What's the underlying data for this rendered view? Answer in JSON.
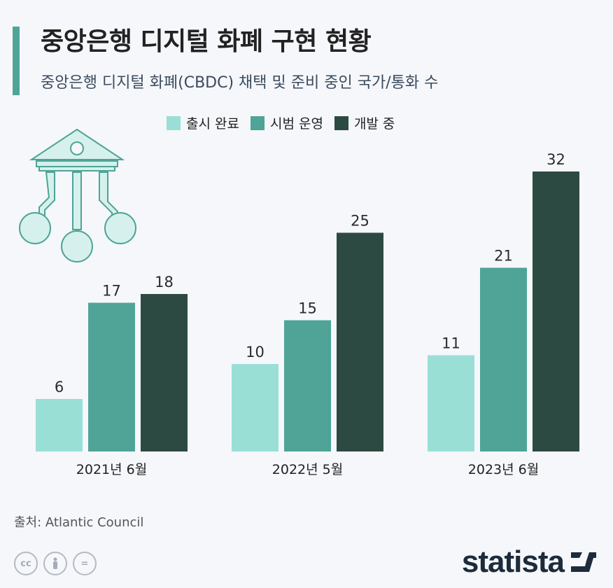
{
  "title": "중앙은행 디지털 화폐 구현 현황",
  "subtitle": "중앙은행 디지털 화폐(CBDC) 채택 및 준비 중인 국가/통화 수",
  "source": "출처: Atlantic Council",
  "logo_text": "statista",
  "chart_data": {
    "type": "bar",
    "categories": [
      "2021년 6월",
      "2022년 5월",
      "2023년 6월"
    ],
    "series": [
      {
        "name": "출시 완료",
        "values": [
          6,
          10,
          11
        ],
        "color": "#9adfd6"
      },
      {
        "name": "시범 운영",
        "values": [
          17,
          15,
          21
        ],
        "color": "#4fa497"
      },
      {
        "name": "개발 중",
        "values": [
          18,
          25,
          32
        ],
        "color": "#2d4a42"
      }
    ],
    "ylim": [
      0,
      32
    ],
    "legend": "top-center",
    "grid": false
  },
  "icons": [
    "bank-circuit-icon",
    "cc-icon",
    "by-icon",
    "nd-icon",
    "statista-logo-icon"
  ]
}
